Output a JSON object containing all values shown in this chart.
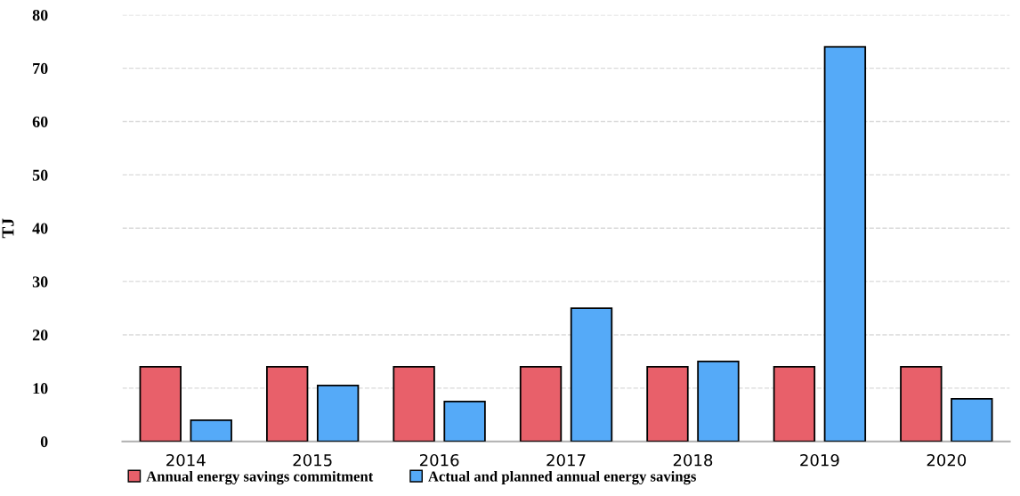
{
  "chart_data": {
    "type": "bar",
    "ylabel": "TJ",
    "categories": [
      "2014",
      "2015",
      "2016",
      "2017",
      "2018",
      "2019",
      "2020"
    ],
    "series": [
      {
        "name": "Annual energy savings commitment",
        "color": "#e8606a",
        "values": [
          14,
          14,
          14,
          14,
          14,
          14,
          14
        ]
      },
      {
        "name": "Actual and planned annual energy savings",
        "color": "#55aaf8",
        "values": [
          4,
          10.5,
          7.5,
          25,
          15,
          74,
          8
        ]
      }
    ],
    "ylim": [
      0,
      80
    ],
    "yticks": [
      0,
      10,
      20,
      30,
      40,
      50,
      60,
      70,
      80
    ],
    "grid": "y",
    "legend": "bottom"
  }
}
